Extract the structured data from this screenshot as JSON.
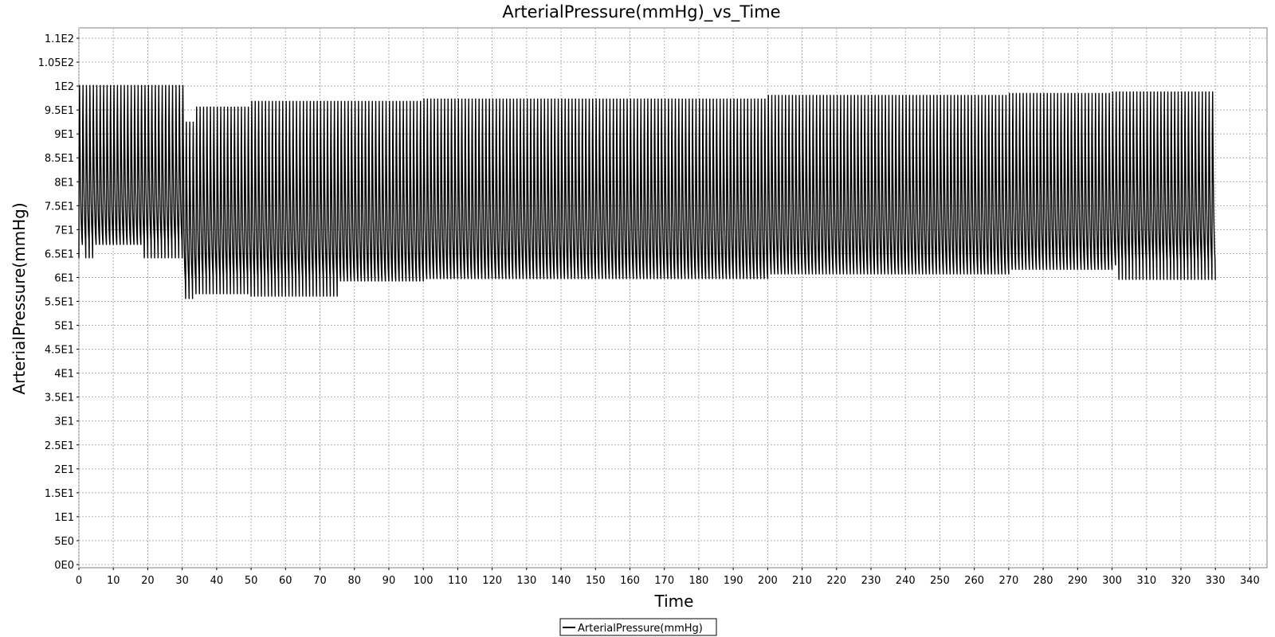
{
  "chart_data": {
    "type": "line",
    "title": "ArterialPressure(mmHg)_vs_Time",
    "xlabel": "Time",
    "ylabel": "ArterialPressure(mmHg)",
    "xlim": [
      0,
      345
    ],
    "ylim": [
      0,
      112
    ],
    "x_ticks": [
      0,
      10,
      20,
      30,
      40,
      50,
      60,
      70,
      80,
      90,
      100,
      110,
      120,
      130,
      140,
      150,
      160,
      170,
      180,
      190,
      200,
      210,
      220,
      230,
      240,
      250,
      260,
      270,
      280,
      290,
      300,
      310,
      320,
      330,
      340
    ],
    "y_ticks": [
      {
        "value": 0,
        "label": "0E0"
      },
      {
        "value": 5,
        "label": "5E0"
      },
      {
        "value": 10,
        "label": "1E1"
      },
      {
        "value": 15,
        "label": "1.5E1"
      },
      {
        "value": 20,
        "label": "2E1"
      },
      {
        "value": 25,
        "label": "2.5E1"
      },
      {
        "value": 30,
        "label": "3E1"
      },
      {
        "value": 35,
        "label": "3.5E1"
      },
      {
        "value": 40,
        "label": "4E1"
      },
      {
        "value": 45,
        "label": "4.5E1"
      },
      {
        "value": 50,
        "label": "5E1"
      },
      {
        "value": 55,
        "label": "5.5E1"
      },
      {
        "value": 60,
        "label": "6E1"
      },
      {
        "value": 65,
        "label": "6.5E1"
      },
      {
        "value": 70,
        "label": "7E1"
      },
      {
        "value": 75,
        "label": "7.5E1"
      },
      {
        "value": 80,
        "label": "8E1"
      },
      {
        "value": 85,
        "label": "8.5E1"
      },
      {
        "value": 90,
        "label": "9E1"
      },
      {
        "value": 95,
        "label": "9.5E1"
      },
      {
        "value": 100,
        "label": "1E2"
      },
      {
        "value": 105,
        "label": "1.05E2"
      },
      {
        "value": 110,
        "label": "1.1E2"
      }
    ],
    "grid": true,
    "legend_position": "bottom-center",
    "series": [
      {
        "name": "ArterialPressure(mmHg)",
        "color": "#000000",
        "description_beat_period": 1.0,
        "segments": [
          {
            "t_start": 0,
            "t_end": 30.5,
            "systolic_max": 106.5,
            "diastolic_min": 64
          },
          {
            "t_start": 30.5,
            "t_end": 34,
            "systolic_max": 99,
            "diastolic_min": 55.5
          },
          {
            "t_start": 34,
            "t_end": 50,
            "systolic_max": 102.5,
            "diastolic_min": 56.5
          },
          {
            "t_start": 50,
            "t_end": 100,
            "systolic_max": 104,
            "diastolic_min": 56
          },
          {
            "t_start": 100,
            "t_end": 200,
            "systolic_max": 104.5,
            "diastolic_min": 56.5
          },
          {
            "t_start": 200,
            "t_end": 270,
            "systolic_max": 105.2,
            "diastolic_min": 57.5
          },
          {
            "t_start": 270,
            "t_end": 300,
            "systolic_max": 105.5,
            "diastolic_min": 58.5
          },
          {
            "t_start": 300,
            "t_end": 330,
            "systolic_max": 105.7,
            "diastolic_min": 59.5
          }
        ],
        "end_x": 330,
        "end_y": 61
      }
    ]
  }
}
